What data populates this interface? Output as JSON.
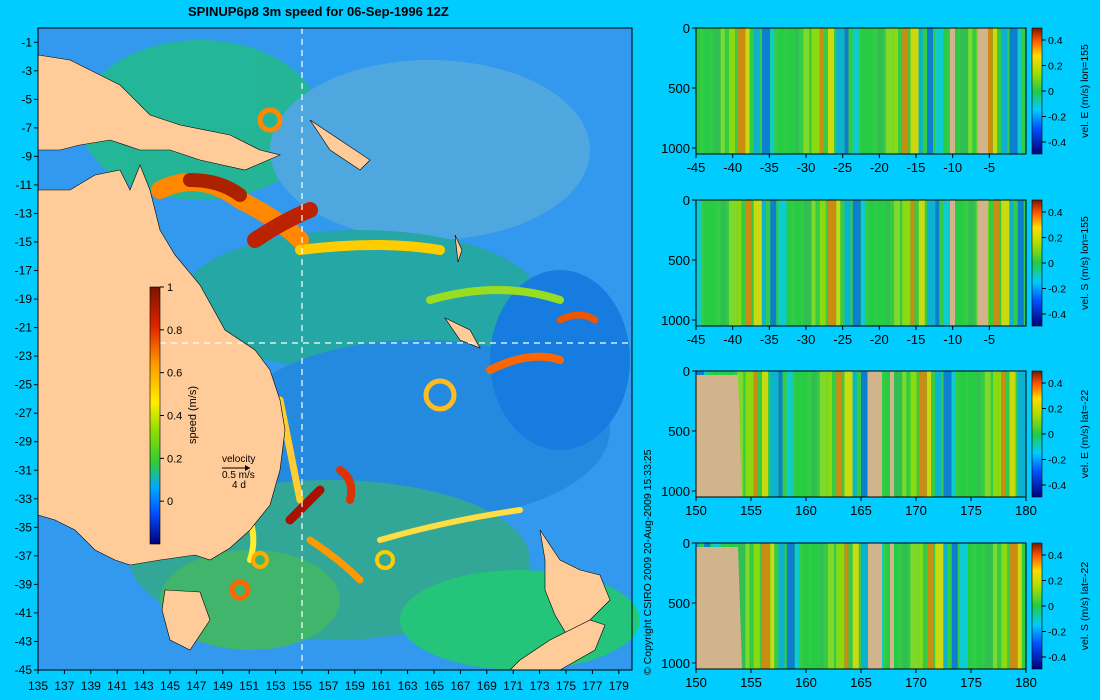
{
  "title": "SPINUP6p8 3m speed for 06-Sep-1996 12Z",
  "copyright": "© Copyright CSIRO 2009  20-Aug-2009 15:33:25",
  "chart_data": [
    {
      "type": "heatmap",
      "name": "surface speed map",
      "x_ticks": [
        135,
        137,
        139,
        141,
        143,
        145,
        147,
        149,
        151,
        153,
        155,
        157,
        159,
        161,
        163,
        165,
        167,
        169,
        171,
        173,
        175,
        177,
        179
      ],
      "y_ticks": [
        -1,
        -3,
        -5,
        -7,
        -9,
        -11,
        -13,
        -15,
        -17,
        -19,
        -21,
        -23,
        -25,
        -27,
        -29,
        -31,
        -33,
        -35,
        -37,
        -39,
        -41,
        -43,
        -45
      ],
      "xlim": [
        135,
        180
      ],
      "ylim": [
        -45,
        0
      ],
      "section_lon": 155,
      "section_lat": -22,
      "colorbar": {
        "label": "speed (m/s)",
        "ticks": [
          0,
          0.2,
          0.4,
          0.6,
          0.8,
          1
        ],
        "tick_labels": [
          "0",
          "0.2",
          "0.4",
          "0.6",
          "0.8",
          "1"
        ],
        "range": [
          -0.2,
          1
        ]
      },
      "velocity_key": {
        "label": "velocity",
        "value": "0.5 m/s",
        "scale": "4 d"
      },
      "colors": {
        "land": "#ffcc99",
        "background": "#00ccff"
      }
    },
    {
      "type": "heatmap",
      "name": "vel. E section",
      "colorbar_label": "vel. E (m/s) lon=155",
      "x_ticks": [
        "-45",
        "-40",
        "-35",
        "-30",
        "-25",
        "-20",
        "-15",
        "-10",
        "-5"
      ],
      "x_range": [
        -45,
        0
      ],
      "y_ticks": [
        "0",
        "500",
        "1000"
      ],
      "y_range": [
        0,
        1050
      ],
      "cb_ticks": [
        "0.4",
        "0.2",
        "0",
        "-0.2",
        "-0.4"
      ]
    },
    {
      "type": "heatmap",
      "name": "vel. S section",
      "colorbar_label": "vel. S (m/s) lon=155",
      "x_ticks": [
        "-45",
        "-40",
        "-35",
        "-30",
        "-25",
        "-20",
        "-15",
        "-10",
        "-5"
      ],
      "x_range": [
        -45,
        0
      ],
      "y_ticks": [
        "0",
        "500",
        "1000"
      ],
      "y_range": [
        0,
        1050
      ],
      "cb_ticks": [
        "0.4",
        "0.2",
        "0",
        "-0.2",
        "-0.4"
      ]
    },
    {
      "type": "heatmap",
      "name": "vel. E section lat",
      "colorbar_label": "vel. E (m/s) lat=-22",
      "x_ticks": [
        "150",
        "155",
        "160",
        "165",
        "170",
        "175",
        "180"
      ],
      "x_range": [
        150,
        180
      ],
      "y_ticks": [
        "0",
        "500",
        "1000"
      ],
      "y_range": [
        0,
        1050
      ],
      "cb_ticks": [
        "0.4",
        "0.2",
        "0",
        "-0.2",
        "-0.4"
      ]
    },
    {
      "type": "heatmap",
      "name": "vel. S section lat",
      "colorbar_label": "vel. S (m/s) lat=-22",
      "x_ticks": [
        "150",
        "155",
        "160",
        "165",
        "170",
        "175",
        "180"
      ],
      "x_range": [
        150,
        180
      ],
      "y_ticks": [
        "0",
        "500",
        "1000"
      ],
      "y_range": [
        0,
        1050
      ],
      "cb_ticks": [
        "0.4",
        "0.2",
        "0",
        "-0.2",
        "-0.4"
      ]
    }
  ]
}
